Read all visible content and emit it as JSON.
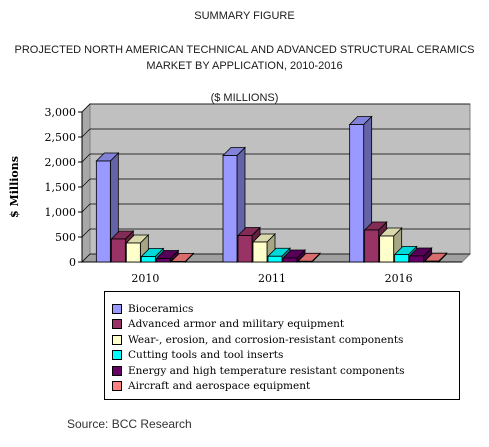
{
  "header": {
    "summary": "SUMMARY FIGURE",
    "title_line1": "PROJECTED NORTH AMERICAN TECHNICAL AND ADVANCED STRUCTURAL CERAMICS",
    "title_line2": "MARKET BY APPLICATION, 2010-2016",
    "units": "($ MILLIONS)"
  },
  "source": "Source: BCC Research",
  "chart_data": {
    "type": "bar",
    "style": "3d-clustered",
    "categories": [
      "2010",
      "2011",
      "2016"
    ],
    "ylabel": "$ Millions",
    "ylim": [
      0,
      3000
    ],
    "yticks": [
      "0",
      "500",
      "1,000",
      "1,500",
      "2,000",
      "2,500",
      "3,000"
    ],
    "ytick_values": [
      0,
      500,
      1000,
      1500,
      2000,
      2500,
      3000
    ],
    "grid": true,
    "legend_placement": "bottom",
    "series": [
      {
        "name": "Bioceramics",
        "color": "#9999ff",
        "values": [
          2020,
          2130,
          2750
        ]
      },
      {
        "name": "Advanced armor and  military equipment",
        "color": "#993366",
        "values": [
          460,
          530,
          640
        ]
      },
      {
        "name": "Wear-, erosion, and corrosion-resistant components",
        "color": "#ffffcc",
        "values": [
          380,
          400,
          520
        ]
      },
      {
        "name": "Cutting tools and tool inserts",
        "color": "#00ffff",
        "values": [
          110,
          115,
          150
        ]
      },
      {
        "name": "Energy and high temperature resistant components",
        "color": "#660066",
        "values": [
          70,
          80,
          120
        ]
      },
      {
        "name": "Aircraft and aerospace equipment",
        "color": "#ff8080",
        "values": [
          12,
          14,
          16
        ]
      }
    ]
  }
}
